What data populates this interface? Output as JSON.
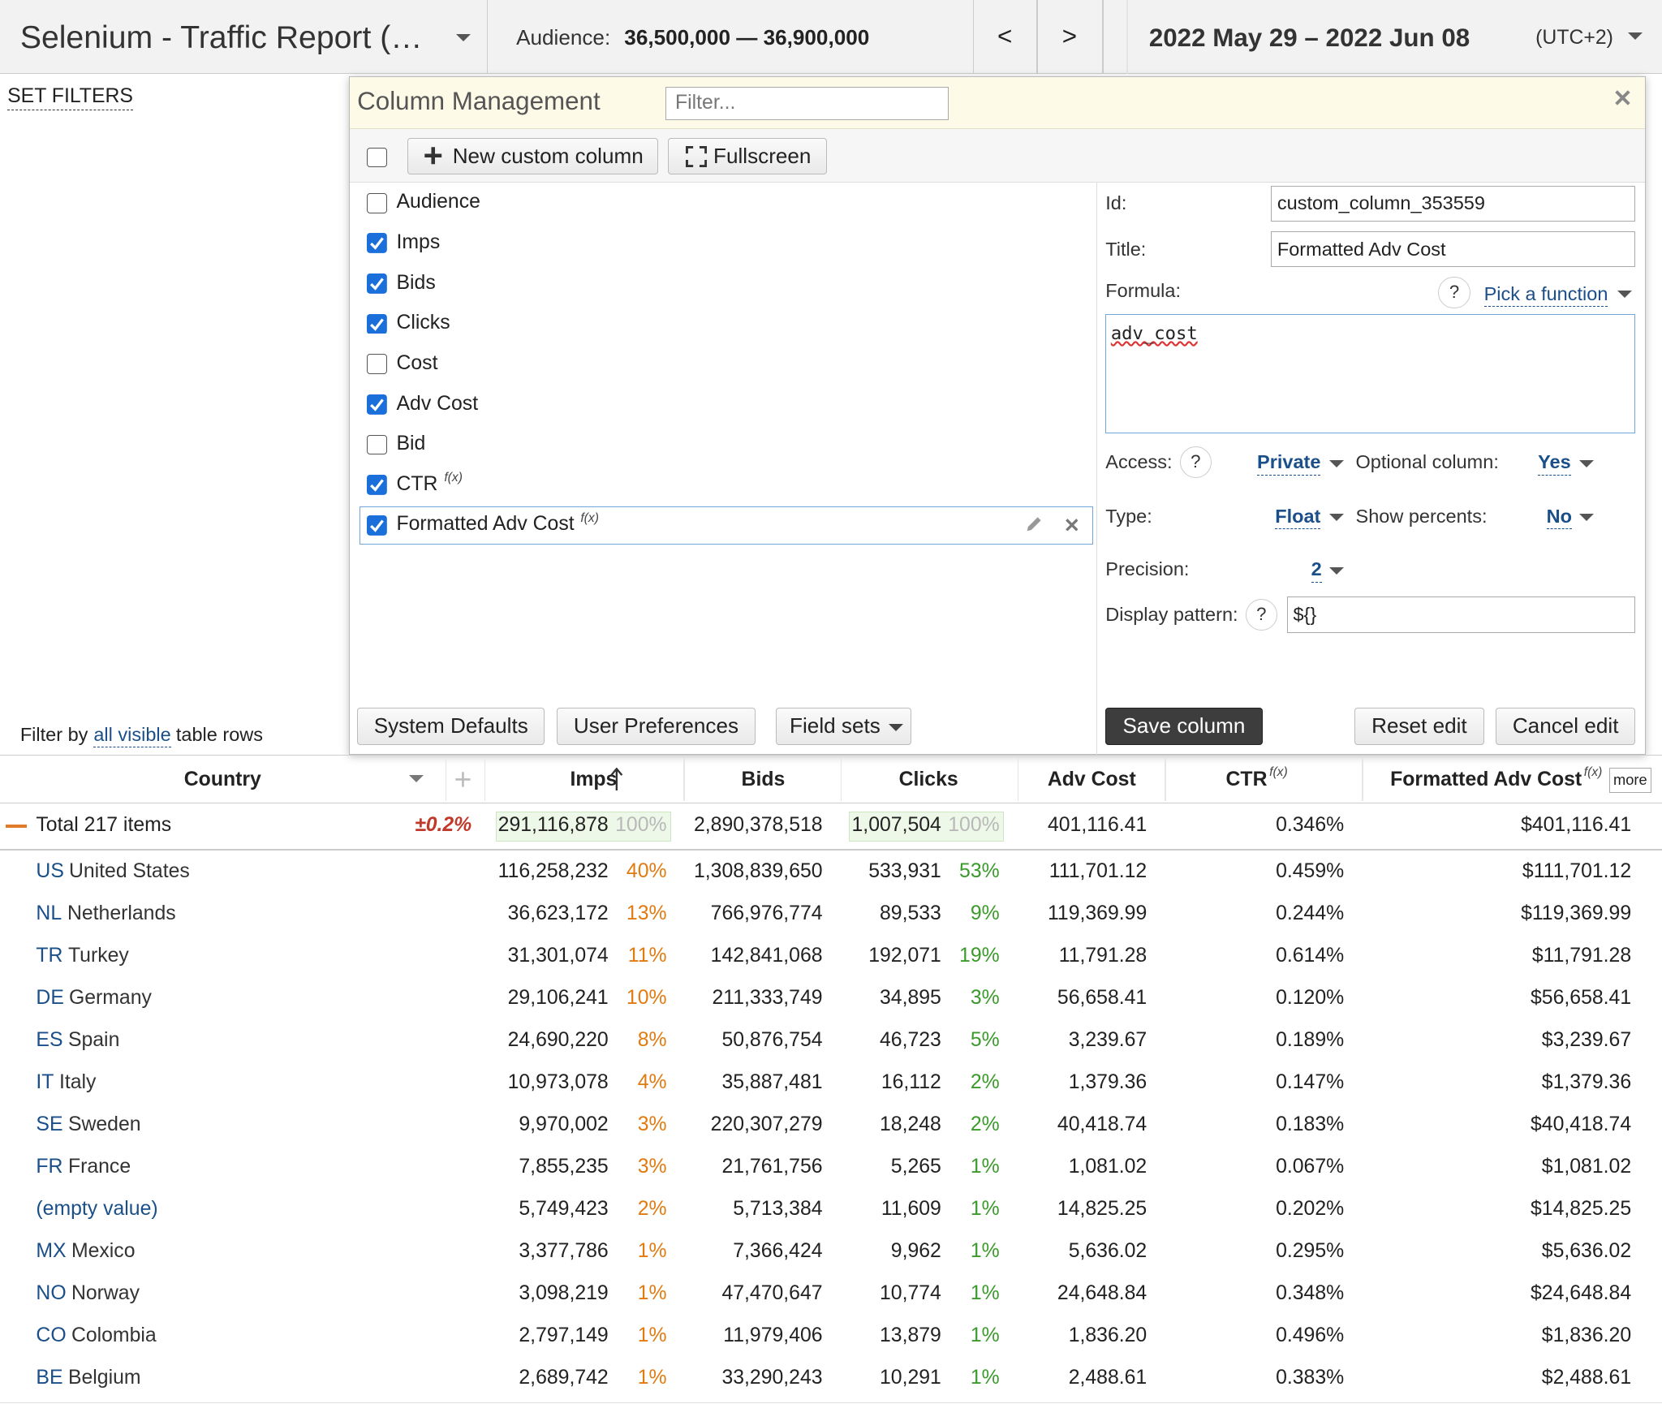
{
  "header": {
    "title": "Selenium - Traffic Report (…",
    "audience_label": "Audience:",
    "audience_value": "36,500,000 — 36,900,000",
    "prev": "<",
    "next": ">",
    "date_range": "2022 May 29 – 2022 Jun 08",
    "timezone": "(UTC+2)"
  },
  "sidebar": {
    "set_filters": "SET FILTERS",
    "filter_prefix": "Filter by",
    "filter_link": "all visible",
    "filter_suffix": "table rows"
  },
  "dialog": {
    "title": "Column Management",
    "filter_placeholder": "Filter...",
    "new_column": "New custom column",
    "fullscreen": "Fullscreen",
    "fx_mark": "f(x)",
    "columns": [
      {
        "label": "Audience",
        "checked": false
      },
      {
        "label": "Imps",
        "checked": true
      },
      {
        "label": "Bids",
        "checked": true
      },
      {
        "label": "Clicks",
        "checked": true
      },
      {
        "label": "Cost",
        "checked": false
      },
      {
        "label": "Adv Cost",
        "checked": true
      },
      {
        "label": "Bid",
        "checked": false
      },
      {
        "label": "CTR",
        "checked": true,
        "fx": true
      },
      {
        "label": "Formatted Adv Cost",
        "checked": true,
        "fx": true,
        "selected": true
      }
    ],
    "form": {
      "help": "?",
      "id_label": "Id:",
      "id_value": "custom_column_353559",
      "title_label": "Title:",
      "title_value": "Formatted Adv Cost",
      "formula_label": "Formula:",
      "pick_function": "Pick a function",
      "formula": "adv_cost",
      "access_label": "Access:",
      "access_value": "Private",
      "optional_label": "Optional column:",
      "optional_value": "Yes",
      "type_label": "Type:",
      "type_value": "Float",
      "show_percents_label": "Show percents:",
      "show_percents_value": "No",
      "precision_label": "Precision:",
      "precision_value": "2",
      "pattern_label": "Display pattern:",
      "pattern_value": "${}"
    },
    "buttons": {
      "system_defaults": "System Defaults",
      "user_preferences": "User Preferences",
      "field_sets": "Field sets",
      "save": "Save column",
      "reset": "Reset edit",
      "cancel": "Cancel edit"
    }
  },
  "table": {
    "fx_mark": "f(x)",
    "more": "more",
    "columns": [
      {
        "label": "Country"
      },
      {
        "label": "Imps"
      },
      {
        "label": "Bids"
      },
      {
        "label": "Clicks"
      },
      {
        "label": "Adv Cost"
      },
      {
        "label": "CTR",
        "fx": true
      },
      {
        "label": "Formatted Adv Cost",
        "fx": true
      }
    ],
    "total": {
      "label": "Total 217 items",
      "delta": "±0.2%",
      "imps": "291,116,878",
      "imps_pct": "100%",
      "bids": "2,890,378,518",
      "clicks": "1,007,504",
      "clicks_pct": "100%",
      "adv_cost": "401,116.41",
      "ctr": "0.346%",
      "formatted": "$401,116.41"
    },
    "rows": [
      {
        "code": "US",
        "name": "United States",
        "imps": "116,258,232",
        "imps_pct": "40%",
        "bids": "1,308,839,650",
        "clicks": "533,931",
        "clicks_pct": "53%",
        "adv_cost": "111,701.12",
        "ctr": "0.459%",
        "formatted": "$111,701.12"
      },
      {
        "code": "NL",
        "name": "Netherlands",
        "imps": "36,623,172",
        "imps_pct": "13%",
        "bids": "766,976,774",
        "clicks": "89,533",
        "clicks_pct": "9%",
        "adv_cost": "119,369.99",
        "ctr": "0.244%",
        "formatted": "$119,369.99"
      },
      {
        "code": "TR",
        "name": "Turkey",
        "imps": "31,301,074",
        "imps_pct": "11%",
        "bids": "142,841,068",
        "clicks": "192,071",
        "clicks_pct": "19%",
        "adv_cost": "11,791.28",
        "ctr": "0.614%",
        "formatted": "$11,791.28"
      },
      {
        "code": "DE",
        "name": "Germany",
        "imps": "29,106,241",
        "imps_pct": "10%",
        "bids": "211,333,749",
        "clicks": "34,895",
        "clicks_pct": "3%",
        "adv_cost": "56,658.41",
        "ctr": "0.120%",
        "formatted": "$56,658.41"
      },
      {
        "code": "ES",
        "name": "Spain",
        "imps": "24,690,220",
        "imps_pct": "8%",
        "bids": "50,876,754",
        "clicks": "46,723",
        "clicks_pct": "5%",
        "adv_cost": "3,239.67",
        "ctr": "0.189%",
        "formatted": "$3,239.67"
      },
      {
        "code": "IT",
        "name": "Italy",
        "imps": "10,973,078",
        "imps_pct": "4%",
        "bids": "35,887,481",
        "clicks": "16,112",
        "clicks_pct": "2%",
        "adv_cost": "1,379.36",
        "ctr": "0.147%",
        "formatted": "$1,379.36"
      },
      {
        "code": "SE",
        "name": "Sweden",
        "imps": "9,970,002",
        "imps_pct": "3%",
        "bids": "220,307,279",
        "clicks": "18,248",
        "clicks_pct": "2%",
        "adv_cost": "40,418.74",
        "ctr": "0.183%",
        "formatted": "$40,418.74"
      },
      {
        "code": "FR",
        "name": "France",
        "imps": "7,855,235",
        "imps_pct": "3%",
        "bids": "21,761,756",
        "clicks": "5,265",
        "clicks_pct": "1%",
        "adv_cost": "1,081.02",
        "ctr": "0.067%",
        "formatted": "$1,081.02"
      },
      {
        "name": "(empty value)",
        "imps": "5,749,423",
        "imps_pct": "2%",
        "bids": "5,713,384",
        "clicks": "11,609",
        "clicks_pct": "1%",
        "adv_cost": "14,825.25",
        "ctr": "0.202%",
        "formatted": "$14,825.25"
      },
      {
        "code": "MX",
        "name": "Mexico",
        "imps": "3,377,786",
        "imps_pct": "1%",
        "bids": "7,366,424",
        "clicks": "9,962",
        "clicks_pct": "1%",
        "adv_cost": "5,636.02",
        "ctr": "0.295%",
        "formatted": "$5,636.02"
      },
      {
        "code": "NO",
        "name": "Norway",
        "imps": "3,098,219",
        "imps_pct": "1%",
        "bids": "47,470,647",
        "clicks": "10,774",
        "clicks_pct": "1%",
        "adv_cost": "24,648.84",
        "ctr": "0.348%",
        "formatted": "$24,648.84"
      },
      {
        "code": "CO",
        "name": "Colombia",
        "imps": "2,797,149",
        "imps_pct": "1%",
        "bids": "11,979,406",
        "clicks": "13,879",
        "clicks_pct": "1%",
        "adv_cost": "1,836.20",
        "ctr": "0.496%",
        "formatted": "$1,836.20"
      },
      {
        "code": "BE",
        "name": "Belgium",
        "imps": "2,689,742",
        "imps_pct": "1%",
        "bids": "33,290,243",
        "clicks": "10,291",
        "clicks_pct": "1%",
        "adv_cost": "2,488.61",
        "ctr": "0.383%",
        "formatted": "$2,488.61"
      }
    ]
  }
}
